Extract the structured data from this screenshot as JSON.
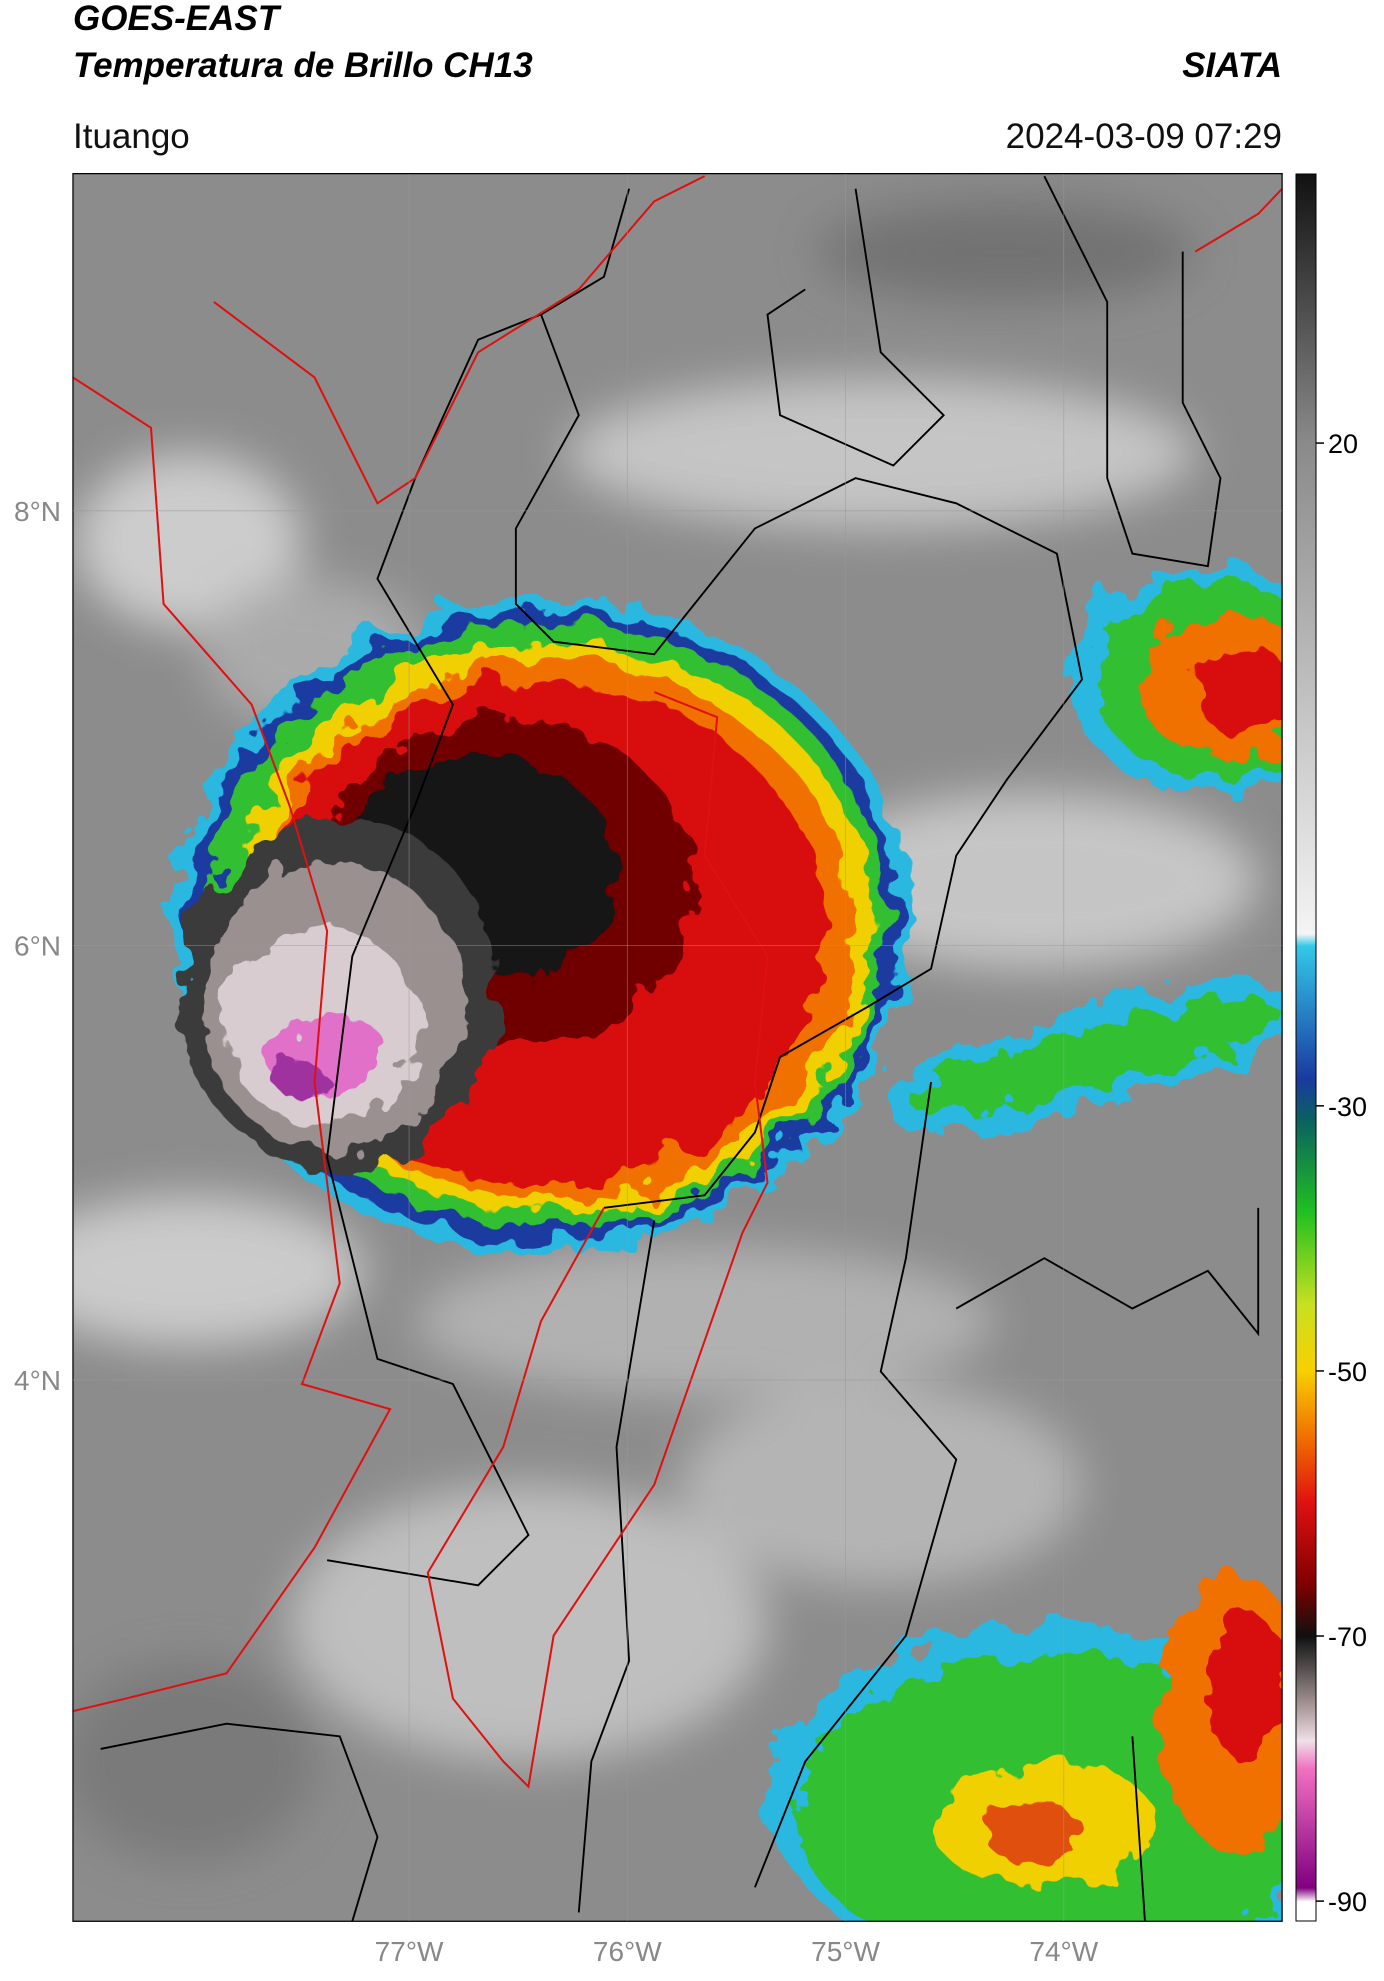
{
  "header": {
    "title": "GOES-EAST",
    "subtitle": "Temperatura de Brillo CH13",
    "agency": "SIATA",
    "location": "Ituango",
    "timestamp": "2024-03-09 07:29"
  },
  "map": {
    "xlim": [
      -78.54,
      -73.0
    ],
    "ylim": [
      1.51,
      9.55
    ],
    "xticks": [
      {
        "value": -77,
        "label": "77°W"
      },
      {
        "value": -76,
        "label": "76°W"
      },
      {
        "value": -75,
        "label": "75°W"
      },
      {
        "value": -74,
        "label": "74°W"
      }
    ],
    "yticks": [
      {
        "value": 8,
        "label": "8°N"
      },
      {
        "value": 6,
        "label": "6°N"
      },
      {
        "value": 4,
        "label": "4°N"
      }
    ],
    "grid": true
  },
  "colorbar": {
    "lim": [
      -91.5,
      40.3
    ],
    "ticks": [
      20,
      -30,
      -50,
      -70,
      -90
    ]
  }
}
